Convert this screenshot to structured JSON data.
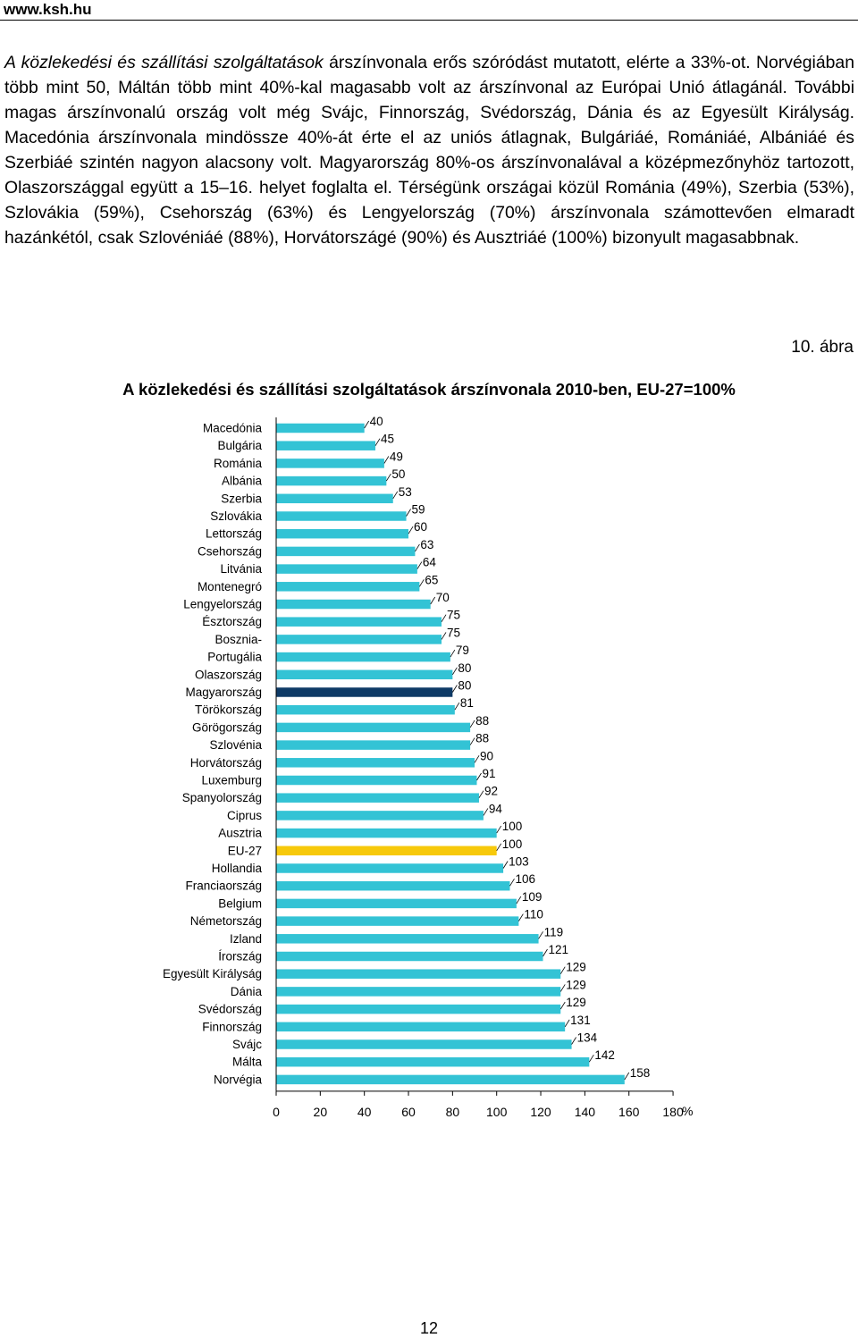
{
  "header": {
    "site": "www.ksh.hu"
  },
  "paragraph": {
    "lead_italic": "A közlekedési és szállítási szolgáltatások",
    "rest": " árszínvonala erős szóródást mutatott, elérte a 33%-ot. Norvégiában több mint 50, Máltán több mint 40%-kal magasabb volt az árszínvonal az Európai Unió átlagánál. További magas árszínvonalú ország volt még Svájc, Finnország, Svédország, Dánia és az Egyesült Királyság. Macedónia árszínvonala mindössze 40%-át érte el az uniós átlagnak, Bulgáriáé, Romániáé, Albániáé és Szerbiáé szintén nagyon alacsony volt. Magyarország 80%-os árszínvonalával a középmezőnyhöz tartozott, Olaszországgal együtt a 15–16. helyet foglalta el. Térségünk országai közül Románia (49%), Szerbia (53%), Szlovákia (59%), Csehország (63%) és Lengyelország (70%) árszínvonala számottevően elmaradt hazánkétól, csak Szlovéniáé (88%), Horvátországé (90%) és Ausztriáé (100%) bizonyult magasabbnak."
  },
  "figure_label": "10. ábra",
  "page_number": "12",
  "chart_data": {
    "type": "bar",
    "orientation": "horizontal",
    "title": "A közlekedési és szállítási szolgáltatások árszínvonala 2010-ben, EU-27=100%",
    "unit_label": "%",
    "categories": [
      "Macedónia",
      "Bulgária",
      "Románia",
      "Albánia",
      "Szerbia",
      "Szlovákia",
      "Lettország",
      "Csehország",
      "Litvánia",
      "Montenegró",
      "Lengyelország",
      "Észtország",
      "Bosznia-",
      "Portugália",
      "Olaszország",
      "Magyarország",
      "Törökország",
      "Görögország",
      "Szlovénia",
      "Horvátország",
      "Luxemburg",
      "Spanyolország",
      "Ciprus",
      "Ausztria",
      "EU-27",
      "Hollandia",
      "Franciaország",
      "Belgium",
      "Németország",
      "Izland",
      "Írország",
      "Egyesült Királyság",
      "Dánia",
      "Svédország",
      "Finnország",
      "Svájc",
      "Málta",
      "Norvégia"
    ],
    "values": [
      40,
      45,
      49,
      50,
      53,
      59,
      60,
      63,
      64,
      65,
      70,
      75,
      75,
      79,
      80,
      80,
      81,
      88,
      88,
      90,
      91,
      92,
      94,
      100,
      100,
      103,
      106,
      109,
      110,
      119,
      121,
      129,
      129,
      129,
      131,
      134,
      142,
      158
    ],
    "value_labels": [
      "40",
      "45",
      "49",
      "50",
      "53",
      "59",
      "60",
      "63",
      "64",
      "65",
      "70",
      "75",
      "75",
      "79",
      "80",
      "80",
      "81",
      "88",
      "88",
      "90",
      "91",
      "92",
      "94",
      "100",
      "100",
      "103",
      "106",
      "109",
      "110",
      "119",
      "121",
      "129",
      "129",
      "129",
      "131",
      "134",
      "142",
      "158"
    ],
    "xlim": [
      0,
      180
    ],
    "xticks": [
      "0",
      "20",
      "40",
      "60",
      "80",
      "100",
      "120",
      "140",
      "160",
      "180"
    ],
    "colors": {
      "default": "#33C3D5",
      "Magyarország": "#0E3A66",
      "EU-27": "#F7C90B"
    },
    "grid": false
  }
}
